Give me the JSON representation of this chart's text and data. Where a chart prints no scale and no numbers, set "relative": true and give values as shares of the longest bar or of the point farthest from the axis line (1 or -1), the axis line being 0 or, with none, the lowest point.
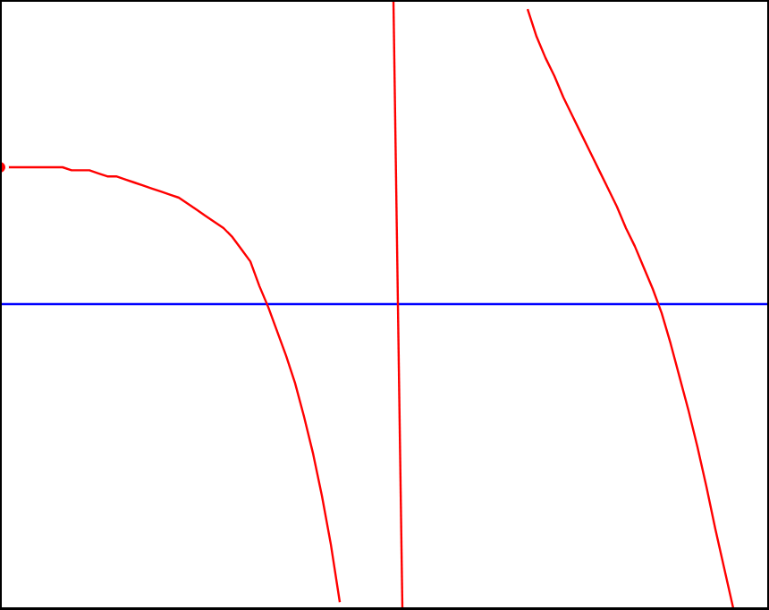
{
  "chart_data": {
    "type": "line",
    "relative": true,
    "categories": [
      null,
      null,
      null,
      null,
      null,
      null,
      null,
      null,
      null,
      null,
      null,
      null,
      null,
      null,
      null,
      null,
      null,
      null,
      null,
      null,
      null,
      null,
      null,
      null,
      null,
      null,
      null,
      null,
      null,
      null,
      null,
      null,
      null,
      null,
      null,
      null,
      null,
      null,
      null,
      null,
      null,
      null,
      null,
      null,
      null,
      null,
      null,
      null,
      null,
      null,
      null,
      null,
      null,
      null,
      null,
      null,
      null,
      null,
      null,
      null,
      null,
      null,
      null,
      null,
      null,
      null,
      null,
      null,
      null,
      null,
      null,
      null,
      null,
      null,
      null,
      null,
      null,
      null,
      null,
      null,
      null,
      null,
      null,
      null,
      null,
      null,
      null
    ],
    "series": [
      {
        "color": "#ff0000",
        "values": [
          0.45,
          0.45,
          0.45,
          0.45,
          0.45,
          0.45,
          0.45,
          0.45,
          0.44,
          0.44,
          0.44,
          0.43,
          0.42,
          0.42,
          0.41,
          0.4,
          0.39,
          0.38,
          0.37,
          0.36,
          0.35,
          0.33,
          0.31,
          0.29,
          0.27,
          0.25,
          0.22,
          0.18,
          0.14,
          0.06,
          -0.01,
          -0.09,
          -0.17,
          -0.26,
          -0.37,
          -0.49,
          -0.63,
          -0.79,
          -0.98,
          null,
          null,
          null,
          null,
          null,
          null,
          null,
          null,
          null,
          null,
          null,
          null,
          null,
          null,
          null,
          null,
          null,
          null,
          null,
          null,
          null,
          null,
          null,
          null,
          null,
          null,
          null,
          null,
          null,
          null,
          null,
          null,
          null,
          null,
          null,
          null,
          null,
          null,
          null,
          null,
          null,
          null,
          null,
          null,
          null,
          null,
          null,
          null
        ]
      },
      {
        "color": "#ff0000",
        "values": [
          null,
          null,
          null,
          null,
          null,
          null,
          null,
          null,
          null,
          null,
          null,
          null,
          null,
          null,
          null,
          null,
          null,
          null,
          null,
          null,
          null,
          null,
          null,
          null,
          null,
          null,
          null,
          null,
          null,
          null,
          null,
          null,
          null,
          null,
          null,
          null,
          null,
          null,
          null,
          null,
          null,
          null,
          null,
          null,
          1,
          -1,
          null,
          null,
          null,
          null,
          null,
          null,
          null,
          null,
          null,
          null,
          null,
          null,
          null,
          null,
          null,
          null,
          null,
          null,
          null,
          null,
          null,
          null,
          null,
          null,
          null,
          null,
          null,
          null,
          null,
          null,
          null,
          null,
          null,
          null,
          null,
          null,
          null,
          null,
          null,
          null,
          null
        ]
      },
      {
        "color": "#ff0000",
        "values": [
          null,
          null,
          null,
          null,
          null,
          null,
          null,
          null,
          null,
          null,
          null,
          null,
          null,
          null,
          null,
          null,
          null,
          null,
          null,
          null,
          null,
          null,
          null,
          null,
          null,
          null,
          null,
          null,
          null,
          null,
          null,
          null,
          null,
          null,
          null,
          null,
          null,
          null,
          null,
          null,
          null,
          null,
          null,
          null,
          null,
          null,
          null,
          null,
          null,
          null,
          null,
          null,
          null,
          null,
          null,
          null,
          null,
          null,
          null,
          0.97,
          0.88,
          0.81,
          0.75,
          0.68,
          0.62,
          0.56,
          0.5,
          0.44,
          0.38,
          0.32,
          0.25,
          0.19,
          0.12,
          0.05,
          -0.03,
          -0.13,
          -0.24,
          -0.35,
          -0.47,
          -0.6,
          -0.74,
          -0.87,
          -1,
          null,
          null,
          null,
          null
        ]
      }
    ],
    "ref_lines": [
      {
        "axis": "y",
        "value": 0,
        "color": "#0000ff"
      }
    ]
  }
}
